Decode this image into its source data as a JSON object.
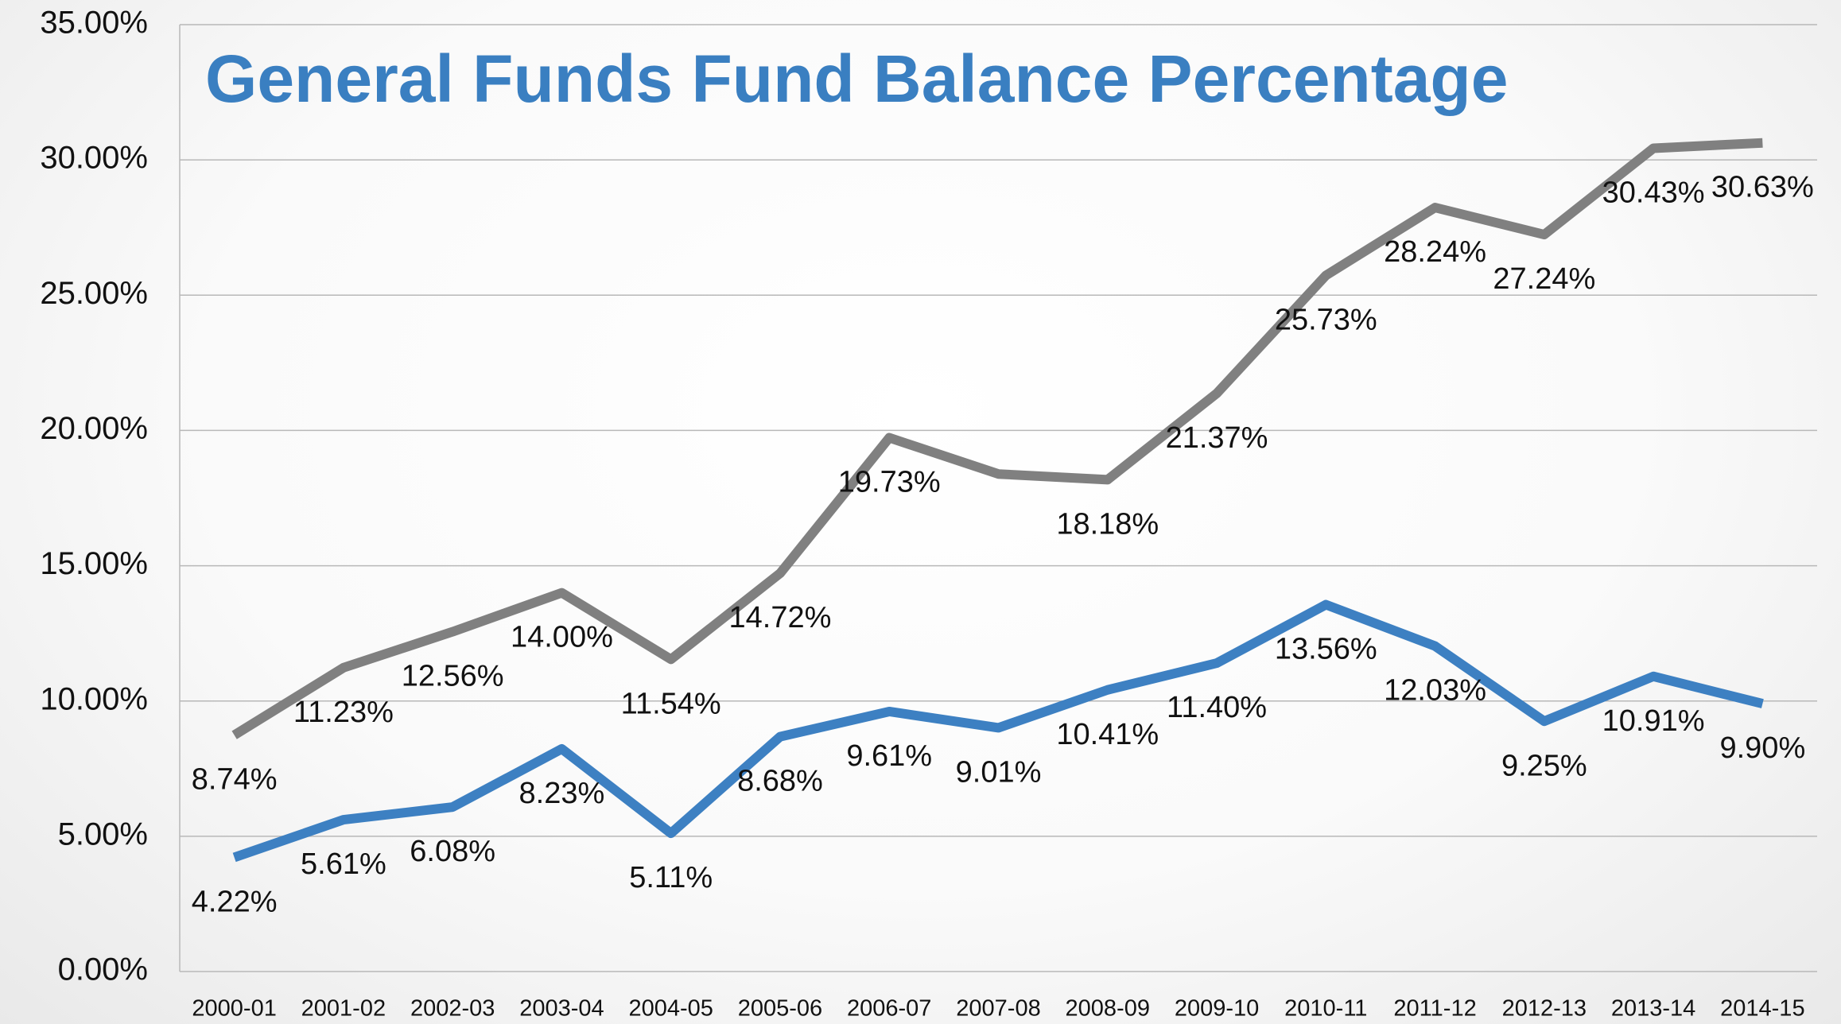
{
  "chart_data": {
    "type": "line",
    "title": "General Funds Fund Balance Percentage",
    "categories": [
      "2000-01",
      "2001-02",
      "2002-03",
      "2003-04",
      "2004-05",
      "2005-06",
      "2006-07",
      "2007-08",
      "2008-09",
      "2009-10",
      "2010-11",
      "2011-12",
      "2012-13",
      "2013-14",
      "2014-15"
    ],
    "series": [
      {
        "color": "#808080",
        "values": [
          8.74,
          11.23,
          12.56,
          14.0,
          11.54,
          14.72,
          19.73,
          18.39,
          18.18,
          21.37,
          25.73,
          28.24,
          27.24,
          30.43,
          30.63
        ],
        "value_labels": [
          "8.74%",
          "11.23%",
          "12.56%",
          "14.00%",
          "11.54%",
          "14.72%",
          "19.73%",
          null,
          "18.18%",
          "21.37%",
          "25.73%",
          "28.24%",
          "27.24%",
          "30.43%",
          "30.63%"
        ]
      },
      {
        "color": "#3d80c2",
        "values": [
          4.22,
          5.61,
          6.08,
          8.23,
          5.11,
          8.68,
          9.61,
          9.01,
          10.41,
          11.4,
          13.56,
          12.03,
          9.25,
          10.91,
          9.9
        ],
        "value_labels": [
          "4.22%",
          "5.61%",
          "6.08%",
          "8.23%",
          "5.11%",
          "8.68%",
          "9.61%",
          "9.01%",
          "10.41%",
          "11.40%",
          "13.56%",
          "12.03%",
          "9.25%",
          "10.91%",
          "9.90%"
        ]
      }
    ],
    "ylim": [
      0,
      35
    ],
    "yticks": [
      {
        "value": 0,
        "label": "0.00%"
      },
      {
        "value": 5,
        "label": "5.00%"
      },
      {
        "value": 10,
        "label": "10.00%"
      },
      {
        "value": 15,
        "label": "15.00%"
      },
      {
        "value": 20,
        "label": "20.00%"
      },
      {
        "value": 25,
        "label": "25.00%"
      },
      {
        "value": 30,
        "label": "30.00%"
      },
      {
        "value": 35,
        "label": "35.00%"
      }
    ],
    "grid": true
  }
}
